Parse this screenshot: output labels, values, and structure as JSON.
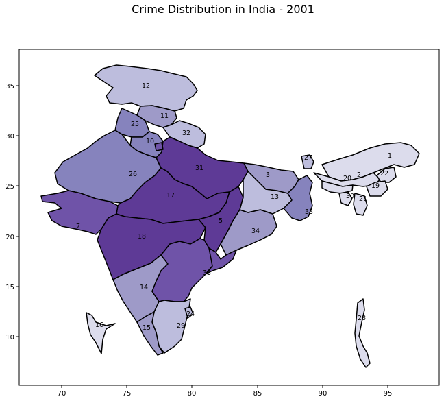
{
  "title": "Crime Distribution in India - 2001",
  "x_ticks": [
    "70",
    "75",
    "80",
    "85",
    "90",
    "95"
  ],
  "y_ticks": [
    "35",
    "30",
    "25",
    "20",
    "15",
    "10"
  ],
  "colors": {
    "level1": "#dcdcec",
    "level2": "#bdbddd",
    "level3": "#9e9ac8",
    "level4": "#8683bd",
    "level5": "#6f53a8",
    "level6": "#5e3a96"
  },
  "region_labels": {
    "r1": "1",
    "r2": "2",
    "r3": "3",
    "r5": "5",
    "r7": "7",
    "r10": "10",
    "r11": "11",
    "r12": "12",
    "r13": "13",
    "r14": "14",
    "r15": "15",
    "r16": "16",
    "r17": "17",
    "r18": "18",
    "r19": "19",
    "r20": "20",
    "r21": "21",
    "r22": "22",
    "r24": "24",
    "r25": "25",
    "r26": "26",
    "r27": "27",
    "r28": "28",
    "r29": "29",
    "r30": "30",
    "r31": "31",
    "r32": "32",
    "r33": "33",
    "r34": "34",
    "r35": "35"
  }
}
